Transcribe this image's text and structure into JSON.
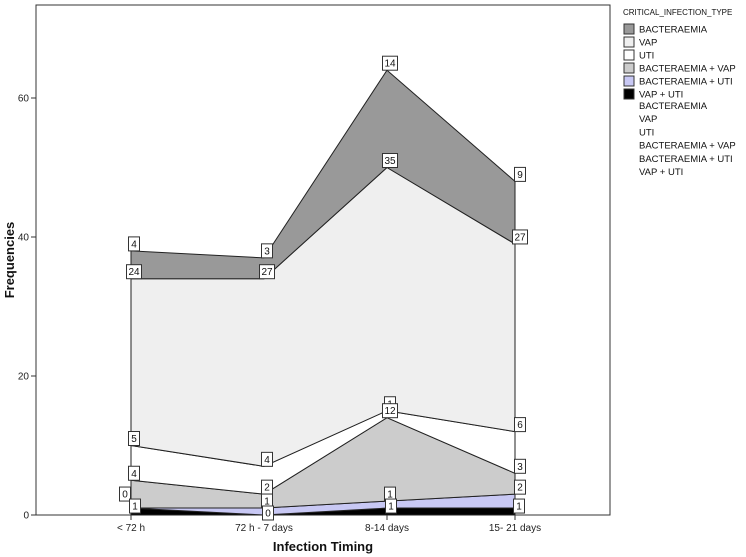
{
  "chart_data": {
    "type": "area",
    "stacked": true,
    "xlabel": "Infection Timing",
    "ylabel": "Frequencies",
    "ylim": [
      0,
      73
    ],
    "yticks": [
      0,
      20,
      40,
      60
    ],
    "categories": [
      "< 72 h",
      "72 h - 7 days",
      "8-14 days",
      "15- 21 days"
    ],
    "legend": {
      "title": "CRITICAL_INFECTION_TYPE",
      "placement": "right",
      "line_entries": [
        "BACTERAEMIA",
        "VAP",
        "UTI",
        "BACTERAEMIA + VAP",
        "BACTERAEMIA + UTI",
        "VAP + UTI"
      ]
    },
    "series": [
      {
        "name": "VAP + UTI",
        "values": [
          1,
          0,
          1,
          1
        ],
        "color": "#000000"
      },
      {
        "name": "BACTERAEMIA + UTI",
        "values": [
          0,
          1,
          1,
          2
        ],
        "color": "#c8c8f4"
      },
      {
        "name": "BACTERAEMIA + VAP",
        "values": [
          4,
          2,
          12,
          3
        ],
        "color": "#cccccc"
      },
      {
        "name": "UTI",
        "values": [
          5,
          4,
          1,
          6
        ],
        "color": "#ffffff"
      },
      {
        "name": "VAP",
        "values": [
          24,
          27,
          35,
          27
        ],
        "color": "#efefef"
      },
      {
        "name": "BACTERAEMIA",
        "values": [
          4,
          3,
          14,
          9
        ],
        "color": "#999999"
      }
    ],
    "legend_order": [
      "BACTERAEMIA",
      "VAP",
      "UTI",
      "BACTERAEMIA + VAP",
      "BACTERAEMIA + UTI",
      "VAP + UTI"
    ]
  }
}
